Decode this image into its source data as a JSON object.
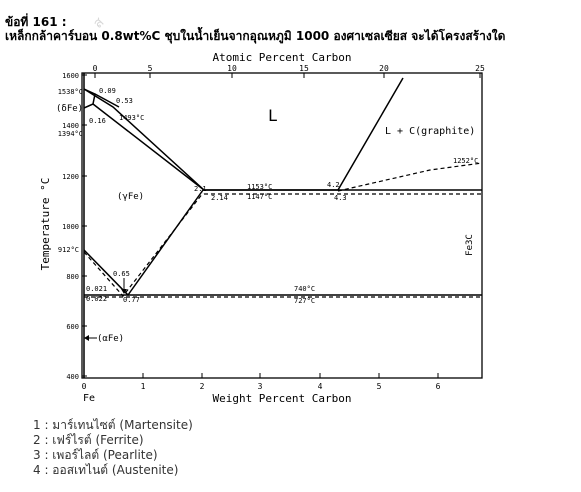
{
  "question": {
    "number_label": "ข้อที่ 161 :",
    "text": "เหล็กกล้าคาร์บอน 0.8wt%C ชุบในน้ำเย็นจากอุณหภูมิ 1000 องศาเซลเซียส จะได้โครงสร้างใด"
  },
  "diagram": {
    "top_axis_title": "Atomic Percent Carbon",
    "bottom_axis_title": "Weight Percent Carbon",
    "left_axis_title": "Temperature °C",
    "right_axis_label": "Fe3C",
    "fe_label": "Fe",
    "top_ticks": [
      "0",
      "5",
      "10",
      "15",
      "20",
      "25"
    ],
    "bottom_ticks": [
      "0",
      "1",
      "2",
      "3",
      "4",
      "5",
      "6"
    ],
    "left_ticks": [
      "1600",
      "1400",
      "1200",
      "1000",
      "800",
      "600",
      "400"
    ],
    "left_point_labels": [
      "1538°C",
      "1394°C",
      "912°C"
    ],
    "phase_labels": {
      "liquid": "L",
      "liquid_graphite": "L + C(graphite)",
      "delta_fe": "(δFe)",
      "gamma_fe": "(γFe)",
      "alpha_fe": "(αFe)"
    },
    "annotations": {
      "c009": "0.09",
      "c053": "0.53",
      "c016": "0.16",
      "t1493": "1493°C",
      "c21": "2.1",
      "c214": "2.14",
      "t1153": "1153°C",
      "t1147": "1147°C",
      "c42": "4.2",
      "c43": "4.3",
      "t1252": "1252°C",
      "c065": "0.65",
      "c077": "0.77",
      "c0021": "0.021",
      "c0022": "0.022",
      "t740": "740°C",
      "t727": "727°C"
    }
  },
  "options": [
    "1 : มาร์เทนไซต์ (Martensite)",
    "2 : เฟร์ไรต์ (Ferrite)",
    "3 : เพอร์ไลต์ (Pearlite)",
    "4 : ออสเทไนต์ (Austenite)"
  ]
}
